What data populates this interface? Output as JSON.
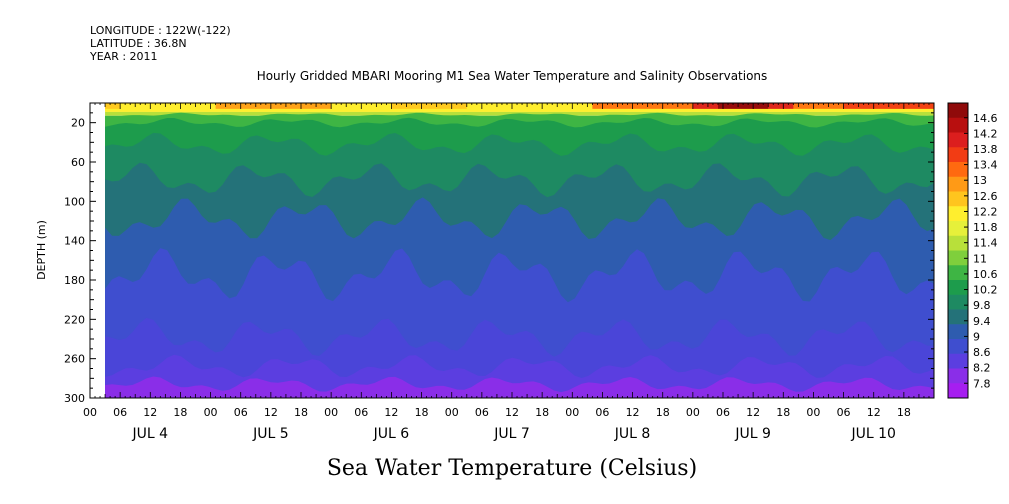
{
  "header": {
    "longitude": "LONGITUDE : 122W(-122)",
    "latitude": "LATITUDE : 36.8N",
    "year": "YEAR : 2011"
  },
  "chart_data": {
    "type": "heatmap",
    "title": "Hourly Gridded MBARI Mooring M1 Sea Water Temperature and Salinity Observations",
    "subtitle": "Sea Water Temperature (Celsius)",
    "ylabel": "DEPTH (m)",
    "xlabel": "",
    "y_reversed": true,
    "ylim": [
      0,
      300
    ],
    "y_ticks": [
      20,
      60,
      100,
      140,
      180,
      220,
      260,
      300
    ],
    "x_hour_ticks": [
      "00",
      "06",
      "12",
      "18",
      "00",
      "06",
      "12",
      "18",
      "00",
      "06",
      "12",
      "18",
      "00",
      "06",
      "12",
      "18",
      "00",
      "06",
      "12",
      "18",
      "00",
      "06",
      "12",
      "18",
      "00",
      "06",
      "12",
      "18"
    ],
    "x_day_labels": [
      "JUL 4",
      "JUL 5",
      "JUL 6",
      "JUL 7",
      "JUL 8",
      "JUL 9",
      "JUL 10"
    ],
    "data_start": "JUL 4 03",
    "data_end": "JUL 10 23",
    "colorbar_levels": [
      "14.6",
      "14.2",
      "13.8",
      "13.4",
      "13",
      "12.6",
      "12.2",
      "11.8",
      "11.4",
      "11",
      "10.6",
      "10.2",
      "9.8",
      "9.4",
      "9",
      "8.6",
      "8.2",
      "7.8"
    ],
    "colorbar_colors": [
      "#8f0a0a",
      "#b80f0f",
      "#dc1e1e",
      "#f23c14",
      "#ff6a10",
      "#ff9a16",
      "#ffc51e",
      "#ffee2e",
      "#e6f03a",
      "#b8e03a",
      "#7fcf3c",
      "#3eb544",
      "#1d9c4c",
      "#1e8a62",
      "#247279",
      "#2e5caf",
      "#3f4ecf",
      "#5b3ee0",
      "#8a2ee8",
      "#a61ef0"
    ],
    "series": [
      {
        "values_description_depth_temperature": [
          [
            8,
            13.4
          ],
          [
            12,
            11.8
          ],
          [
            20,
            10.2
          ],
          [
            40,
            9.8
          ],
          [
            60,
            9.5
          ],
          [
            100,
            9.0
          ],
          [
            140,
            8.8
          ],
          [
            180,
            8.6
          ],
          [
            220,
            8.4
          ],
          [
            260,
            8.2
          ],
          [
            300,
            7.9
          ]
        ]
      }
    ]
  }
}
